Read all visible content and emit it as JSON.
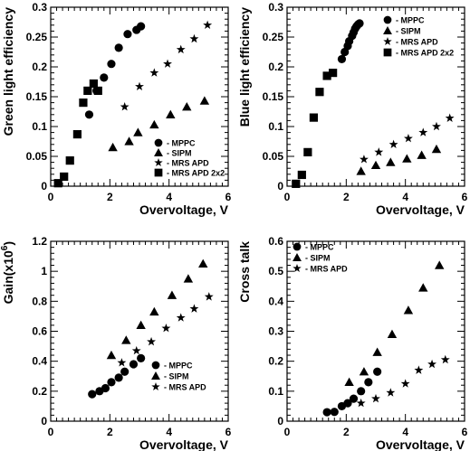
{
  "chart_data": [
    {
      "type": "scatter",
      "xlabel": "Overvoltage, V",
      "ylabel": "Green light efficiency",
      "xlim": [
        0,
        6
      ],
      "ylim": [
        0,
        0.3
      ],
      "xticks": [
        "0",
        "2",
        "4",
        "6"
      ],
      "yticks": [
        "0",
        "0.05",
        "0.1",
        "0.15",
        "0.2",
        "0.25",
        "0.3"
      ],
      "legend_position": "bottom-right",
      "series": [
        {
          "name": "MPPC",
          "marker": "circle",
          "x": [
            1.3,
            1.55,
            1.8,
            2.05,
            2.3,
            2.6,
            2.9,
            3.05
          ],
          "y": [
            0.12,
            0.16,
            0.182,
            0.205,
            0.232,
            0.255,
            0.262,
            0.268
          ]
        },
        {
          "name": "SIPM",
          "marker": "triangle",
          "x": [
            2.1,
            2.65,
            2.95,
            3.5,
            4.05,
            4.6,
            5.2
          ],
          "y": [
            0.065,
            0.075,
            0.09,
            0.103,
            0.12,
            0.133,
            0.143
          ]
        },
        {
          "name": "MRS APD",
          "marker": "star",
          "x": [
            2.5,
            3.0,
            3.5,
            3.95,
            4.4,
            4.85,
            5.3
          ],
          "y": [
            0.133,
            0.167,
            0.19,
            0.205,
            0.229,
            0.247,
            0.27
          ]
        },
        {
          "name": "MRS APD 2x2",
          "marker": "square",
          "x": [
            0.25,
            0.45,
            0.65,
            0.9,
            1.1,
            1.25,
            1.45,
            1.6
          ],
          "y": [
            0.005,
            0.016,
            0.043,
            0.087,
            0.14,
            0.16,
            0.172,
            0.16
          ]
        }
      ]
    },
    {
      "type": "scatter",
      "xlabel": "Overvoltage, V",
      "ylabel": "Blue light efficiency",
      "xlim": [
        0,
        6
      ],
      "ylim": [
        0,
        0.3
      ],
      "xticks": [
        "0",
        "2",
        "4",
        "6"
      ],
      "yticks": [
        "0",
        "0.05",
        "0.1",
        "0.15",
        "0.2",
        "0.25",
        "0.3"
      ],
      "legend_position": "top-right",
      "series": [
        {
          "name": "MPPC",
          "marker": "circle",
          "x": [
            1.85,
            1.95,
            2.05,
            2.1,
            2.2,
            2.25,
            2.3,
            2.35,
            2.4,
            2.45
          ],
          "y": [
            0.213,
            0.225,
            0.235,
            0.243,
            0.252,
            0.258,
            0.264,
            0.268,
            0.271,
            0.273
          ]
        },
        {
          "name": "SIPM",
          "marker": "triangle",
          "x": [
            2.5,
            3.0,
            3.5,
            4.05,
            4.55,
            5.05
          ],
          "y": [
            0.025,
            0.035,
            0.04,
            0.046,
            0.052,
            0.062
          ]
        },
        {
          "name": "MRS APD",
          "marker": "star",
          "x": [
            2.6,
            3.1,
            3.6,
            4.1,
            4.6,
            5.05,
            5.5
          ],
          "y": [
            0.045,
            0.057,
            0.07,
            0.08,
            0.09,
            0.1,
            0.114
          ]
        },
        {
          "name": "MRS APD 2x2",
          "marker": "square",
          "x": [
            0.3,
            0.5,
            0.7,
            0.9,
            1.1,
            1.35,
            1.55
          ],
          "y": [
            0.004,
            0.019,
            0.057,
            0.115,
            0.158,
            0.185,
            0.19
          ]
        }
      ]
    },
    {
      "type": "scatter",
      "xlabel": "Overvoltage, V",
      "ylabel": "Gain(x10^6)",
      "ylabel_base": "Gain(x10",
      "ylabel_sup": "6",
      "ylabel_tail": ")",
      "xlim": [
        0,
        6
      ],
      "ylim": [
        0,
        1.2
      ],
      "xticks": [
        "0",
        "2",
        "4",
        "6"
      ],
      "yticks": [
        "0",
        "0.2",
        "0.4",
        "0.6",
        "0.8",
        "1",
        "1.2"
      ],
      "legend_position": "bottom-right",
      "series": [
        {
          "name": "MPPC",
          "marker": "circle",
          "x": [
            1.4,
            1.65,
            1.85,
            2.05,
            2.3,
            2.5,
            2.8,
            3.05
          ],
          "y": [
            0.18,
            0.2,
            0.22,
            0.26,
            0.29,
            0.33,
            0.38,
            0.42
          ]
        },
        {
          "name": "SIPM",
          "marker": "triangle",
          "x": [
            2.05,
            2.55,
            3.05,
            3.5,
            4.1,
            4.65,
            5.15
          ],
          "y": [
            0.44,
            0.54,
            0.64,
            0.73,
            0.84,
            0.95,
            1.05
          ]
        },
        {
          "name": "MRS APD",
          "marker": "star",
          "x": [
            2.4,
            2.9,
            3.4,
            3.9,
            4.4,
            4.85,
            5.35
          ],
          "y": [
            0.39,
            0.47,
            0.53,
            0.62,
            0.69,
            0.75,
            0.83
          ]
        }
      ]
    },
    {
      "type": "scatter",
      "xlabel": "Overvoltage, V",
      "ylabel": "Cross talk",
      "xlim": [
        0,
        6
      ],
      "ylim": [
        0,
        0.6
      ],
      "xticks": [
        "0",
        "2",
        "4",
        "6"
      ],
      "yticks": [
        "0",
        "0.1",
        "0.2",
        "0.3",
        "0.4",
        "0.5",
        "0.6"
      ],
      "legend_position": "top-left",
      "series": [
        {
          "name": "MPPC",
          "marker": "circle",
          "x": [
            1.35,
            1.6,
            1.85,
            2.05,
            2.25,
            2.5,
            2.75,
            3.05
          ],
          "y": [
            0.03,
            0.031,
            0.05,
            0.06,
            0.075,
            0.1,
            0.13,
            0.165
          ]
        },
        {
          "name": "SIPM",
          "marker": "triangle",
          "x": [
            2.1,
            2.6,
            3.05,
            3.55,
            4.1,
            4.6,
            5.15
          ],
          "y": [
            0.13,
            0.165,
            0.23,
            0.29,
            0.37,
            0.445,
            0.52
          ]
        },
        {
          "name": "MRS APD",
          "marker": "star",
          "x": [
            2.5,
            3.0,
            3.5,
            4.0,
            4.45,
            4.9,
            5.35
          ],
          "y": [
            0.06,
            0.075,
            0.095,
            0.125,
            0.17,
            0.19,
            0.205
          ]
        }
      ]
    }
  ]
}
